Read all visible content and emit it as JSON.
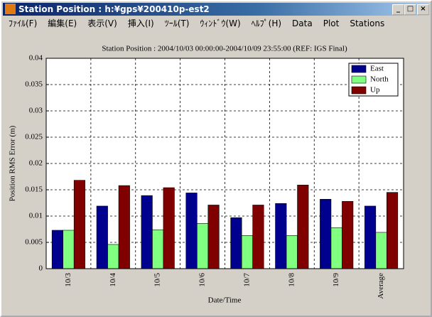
{
  "window": {
    "title": "Station Position : h:¥gps¥200410p-est2"
  },
  "menu": [
    "ﾌｧｲﾙ(F)",
    "編集(E)",
    "表示(V)",
    "挿入(I)",
    "ﾂｰﾙ(T)",
    "ｳｨﾝﾄﾞｳ(W)",
    "ﾍﾙﾌﾟ(H)",
    "Data",
    "Plot",
    "Stations"
  ],
  "chart_data": {
    "type": "bar",
    "title": "Station Position : 2004/10/03 00:00:00-2004/10/09 23:55:00 (REF: IGS Final)",
    "x_label": "Date/Time",
    "y_label": "Position RMS Error (m)",
    "categories": [
      "10/3",
      "10/4",
      "10/5",
      "10/6",
      "10/7",
      "10/8",
      "10/9",
      "Average"
    ],
    "series": [
      {
        "name": "East",
        "color": "#00008f",
        "values": [
          0.0073,
          0.0119,
          0.0139,
          0.0144,
          0.0097,
          0.0124,
          0.0132,
          0.0119
        ]
      },
      {
        "name": "North",
        "color": "#80ff80",
        "values": [
          0.0073,
          0.0046,
          0.0074,
          0.0086,
          0.0063,
          0.0063,
          0.0078,
          0.0069
        ]
      },
      {
        "name": "Up",
        "color": "#800000",
        "values": [
          0.0168,
          0.0158,
          0.0154,
          0.0121,
          0.0121,
          0.0159,
          0.0128,
          0.0145
        ]
      }
    ],
    "ylim": [
      0,
      0.04
    ],
    "yticks": [
      0,
      0.005,
      0.01,
      0.015,
      0.02,
      0.025,
      0.03,
      0.035,
      0.04
    ],
    "grid": true,
    "legend": "top-right"
  }
}
